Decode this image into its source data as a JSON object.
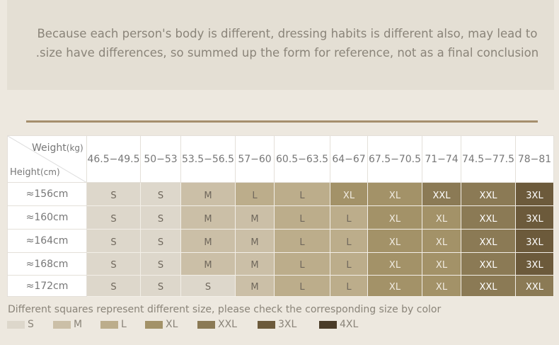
{
  "intro": [
    "Because each person's body is different, dressing habits is different also, may lead to",
    ".size have differences, so summed up the form for reference, not as a final conclusion"
  ],
  "table": {
    "corner": {
      "weight": "Weight",
      "weight_unit": "(kg)",
      "height": "Height",
      "height_unit": "(cm)"
    },
    "columns": [
      "46.5−49.5",
      "50−53",
      "53.5−56.5",
      "57−60",
      "60.5−63.5",
      "64−67",
      "67.5−70.5",
      "71−74",
      "74.5−77.5",
      "78−81"
    ],
    "rows": [
      {
        "height": "≈156cm",
        "sizes": [
          "S",
          "S",
          "M",
          "L",
          "L",
          "XL",
          "XL",
          "XXL",
          "XXL",
          "3XL"
        ]
      },
      {
        "height": "≈160cm",
        "sizes": [
          "S",
          "S",
          "M",
          "M",
          "L",
          "L",
          "XL",
          "XL",
          "XXL",
          "3XL"
        ]
      },
      {
        "height": "≈164cm",
        "sizes": [
          "S",
          "S",
          "M",
          "M",
          "L",
          "L",
          "XL",
          "XL",
          "XXL",
          "3XL"
        ]
      },
      {
        "height": "≈168cm",
        "sizes": [
          "S",
          "S",
          "M",
          "M",
          "L",
          "L",
          "XL",
          "XL",
          "XXL",
          "3XL"
        ]
      },
      {
        "height": "≈172cm",
        "sizes": [
          "S",
          "S",
          "S",
          "M",
          "L",
          "L",
          "XL",
          "XL",
          "XXL",
          "XXL"
        ]
      }
    ]
  },
  "legend": {
    "note": "Different squares represent different size, please check the corresponding size by color",
    "items": [
      {
        "label": "S",
        "color": "#ddd7cb"
      },
      {
        "label": "M",
        "color": "#cbbfa7"
      },
      {
        "label": "L",
        "color": "#bcad8b"
      },
      {
        "label": "XL",
        "color": "#a39268"
      },
      {
        "label": "XXL",
        "color": "#8b7a55"
      },
      {
        "label": "3XL",
        "color": "#6c5a3b"
      },
      {
        "label": "4XL",
        "color": "#4a3c28"
      }
    ]
  }
}
